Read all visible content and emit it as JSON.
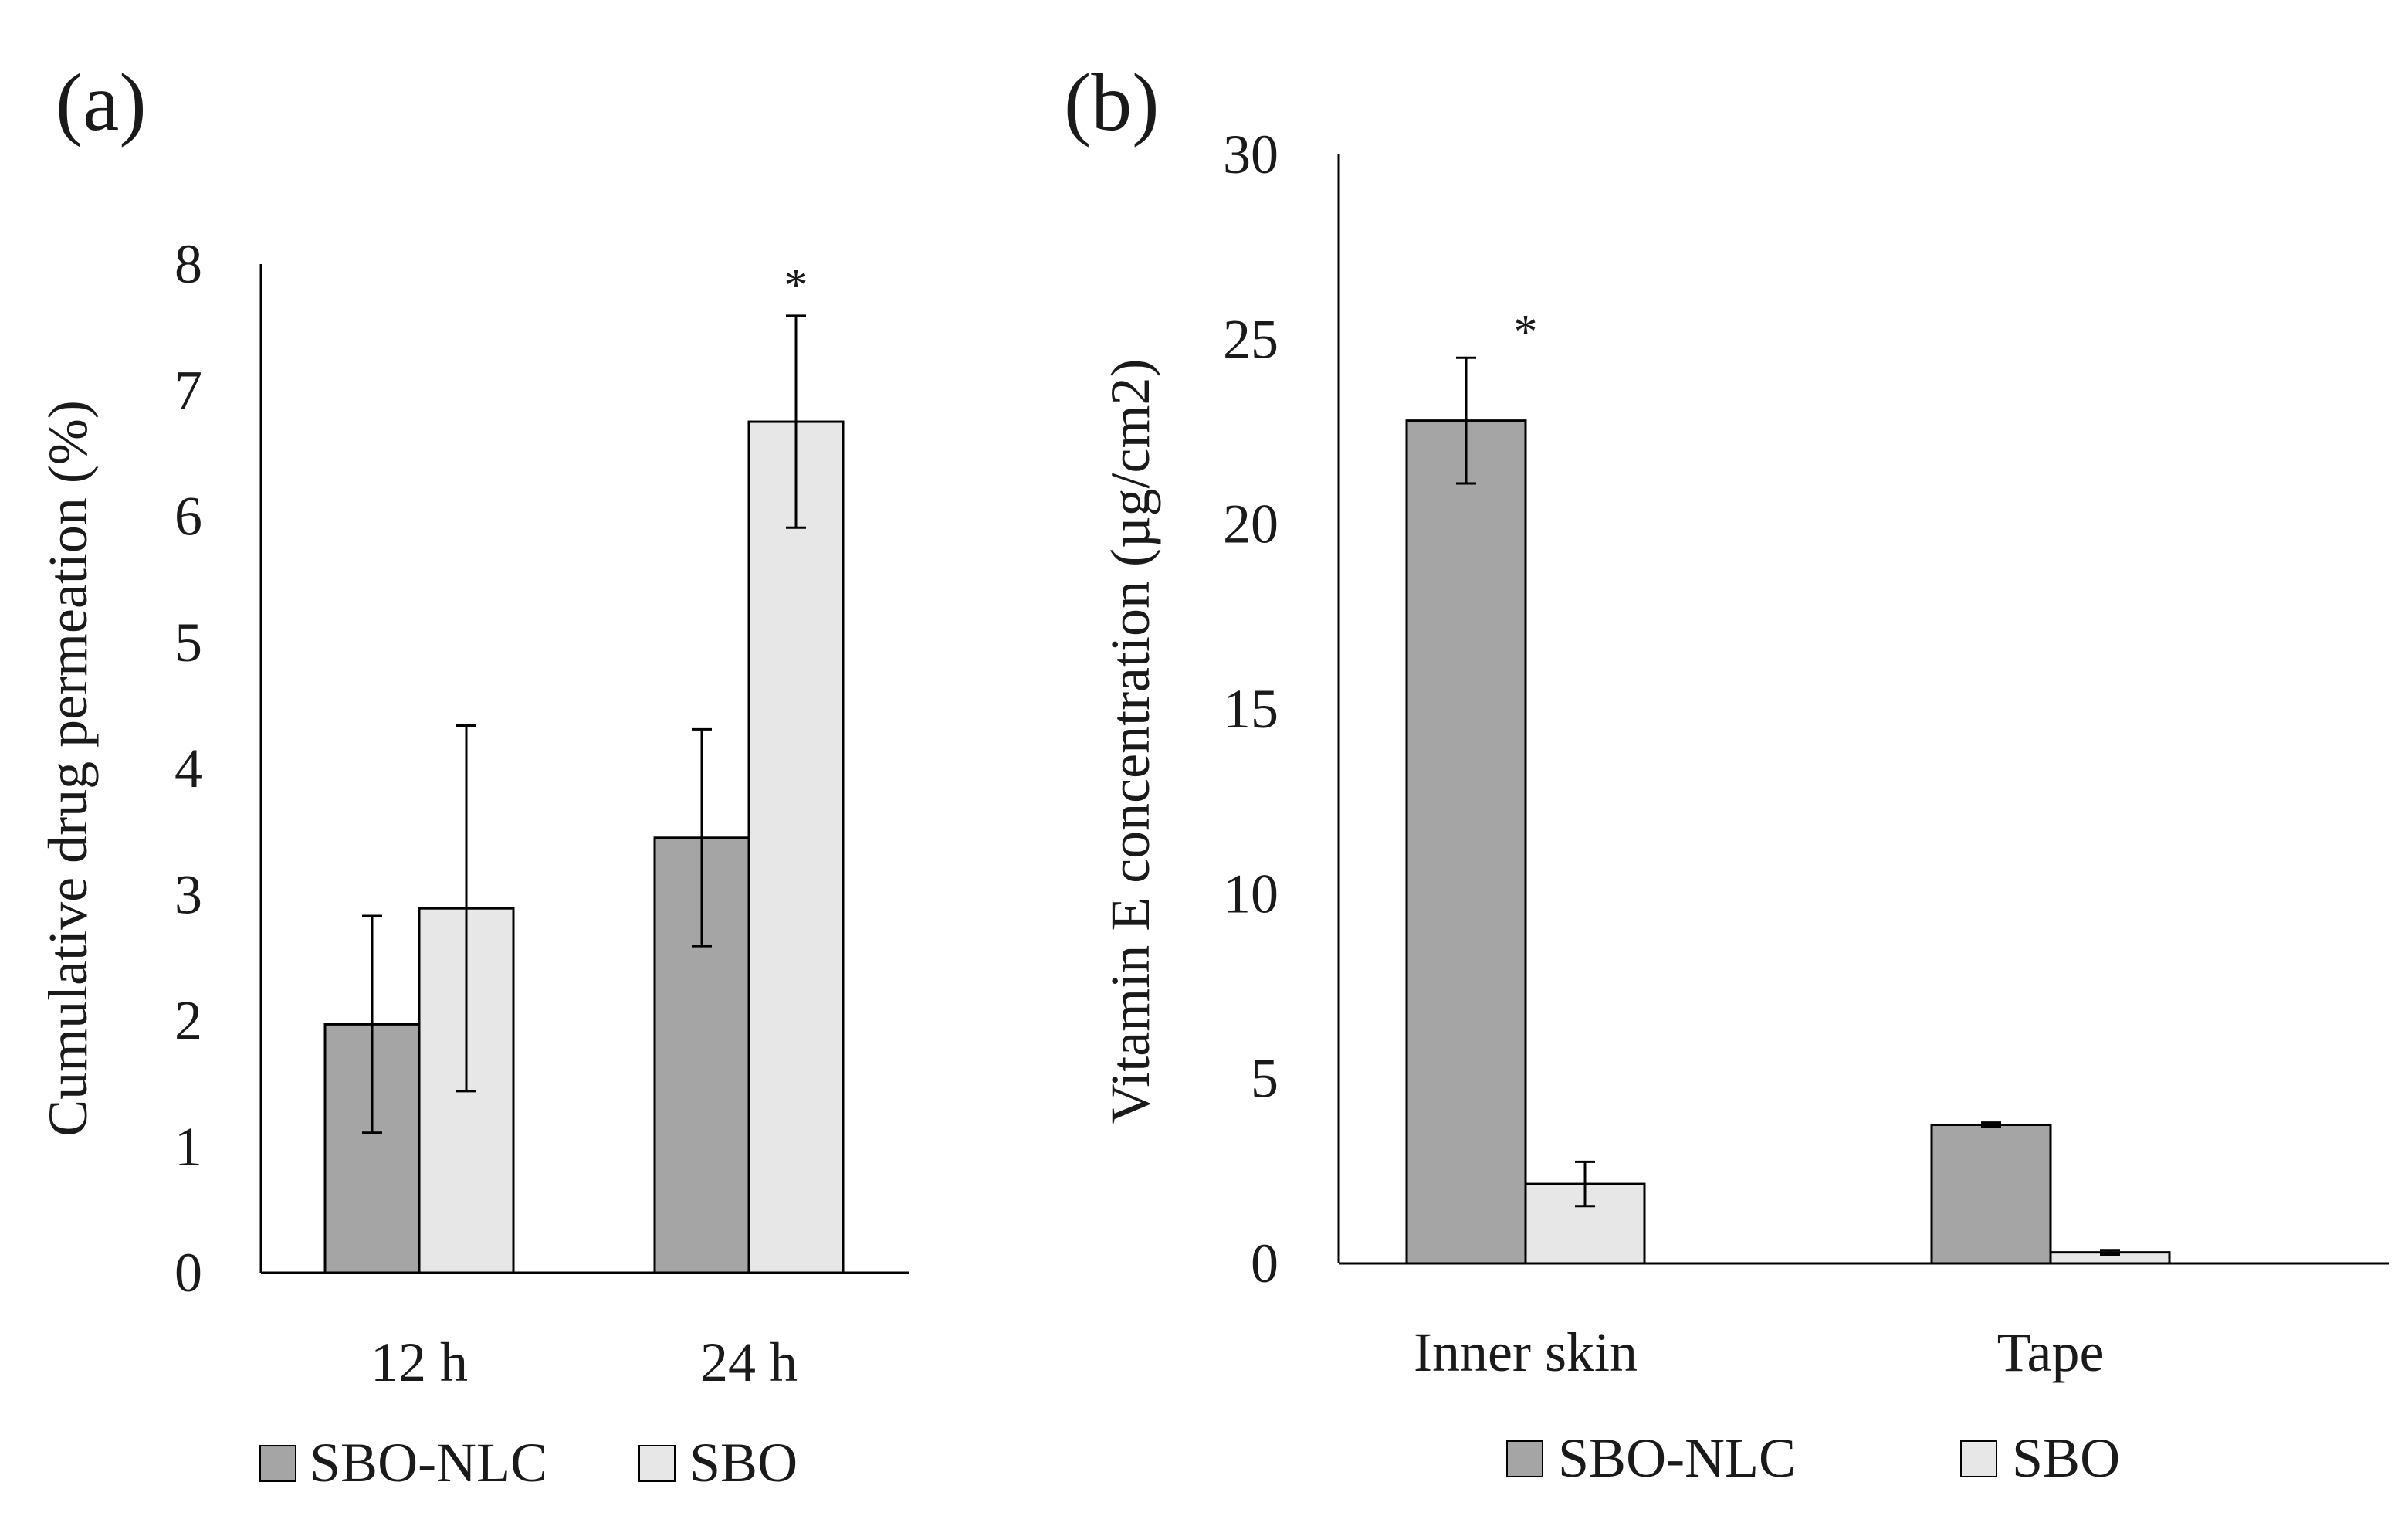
{
  "colors": {
    "sbo_nlc": "#a5a5a5",
    "sbo": "#e7e7e7",
    "axis": "#000000",
    "text": "#1a1a1a"
  },
  "chart_data": [
    {
      "panel": "(a)",
      "type": "bar",
      "ylabel": "Cumulative  drug permeation (%)",
      "xlabel": "",
      "ylim": [
        0,
        8
      ],
      "yticks": [
        "0",
        "1",
        "2",
        "3",
        "4",
        "5",
        "6",
        "7",
        "8"
      ],
      "categories": [
        "12 h",
        "24 h"
      ],
      "series": [
        {
          "name": "SBO-NLC",
          "values": [
            1.97,
            3.45
          ],
          "errors": [
            0.86,
            0.86
          ]
        },
        {
          "name": "SBO",
          "values": [
            2.89,
            6.75
          ],
          "errors": [
            1.45,
            0.84
          ]
        }
      ],
      "annotations": [
        {
          "text": "*",
          "category": "24 h",
          "series": "SBO"
        }
      ],
      "legend": {
        "position": "bottom",
        "entries": [
          "SBO-NLC",
          "SBO"
        ]
      }
    },
    {
      "panel": "(b)",
      "type": "bar",
      "ylabel": "Vitamin E concentration  (µg/cm2)",
      "xlabel": "",
      "ylim": [
        0,
        30
      ],
      "yticks": [
        "0",
        "5",
        "10",
        "15",
        "20",
        "25",
        "30"
      ],
      "categories": [
        "Inner skin",
        "Tape"
      ],
      "series": [
        {
          "name": "SBO-NLC",
          "values": [
            22.8,
            3.75
          ],
          "errors": [
            1.7,
            0.06
          ]
        },
        {
          "name": "SBO",
          "values": [
            2.15,
            0.3
          ],
          "errors": [
            0.6,
            0.06
          ]
        }
      ],
      "annotations": [
        {
          "text": "*",
          "category": "Inner skin",
          "series": "SBO-NLC"
        }
      ],
      "legend": {
        "position": "bottom",
        "entries": [
          "SBO-NLC",
          "SBO"
        ]
      }
    }
  ]
}
